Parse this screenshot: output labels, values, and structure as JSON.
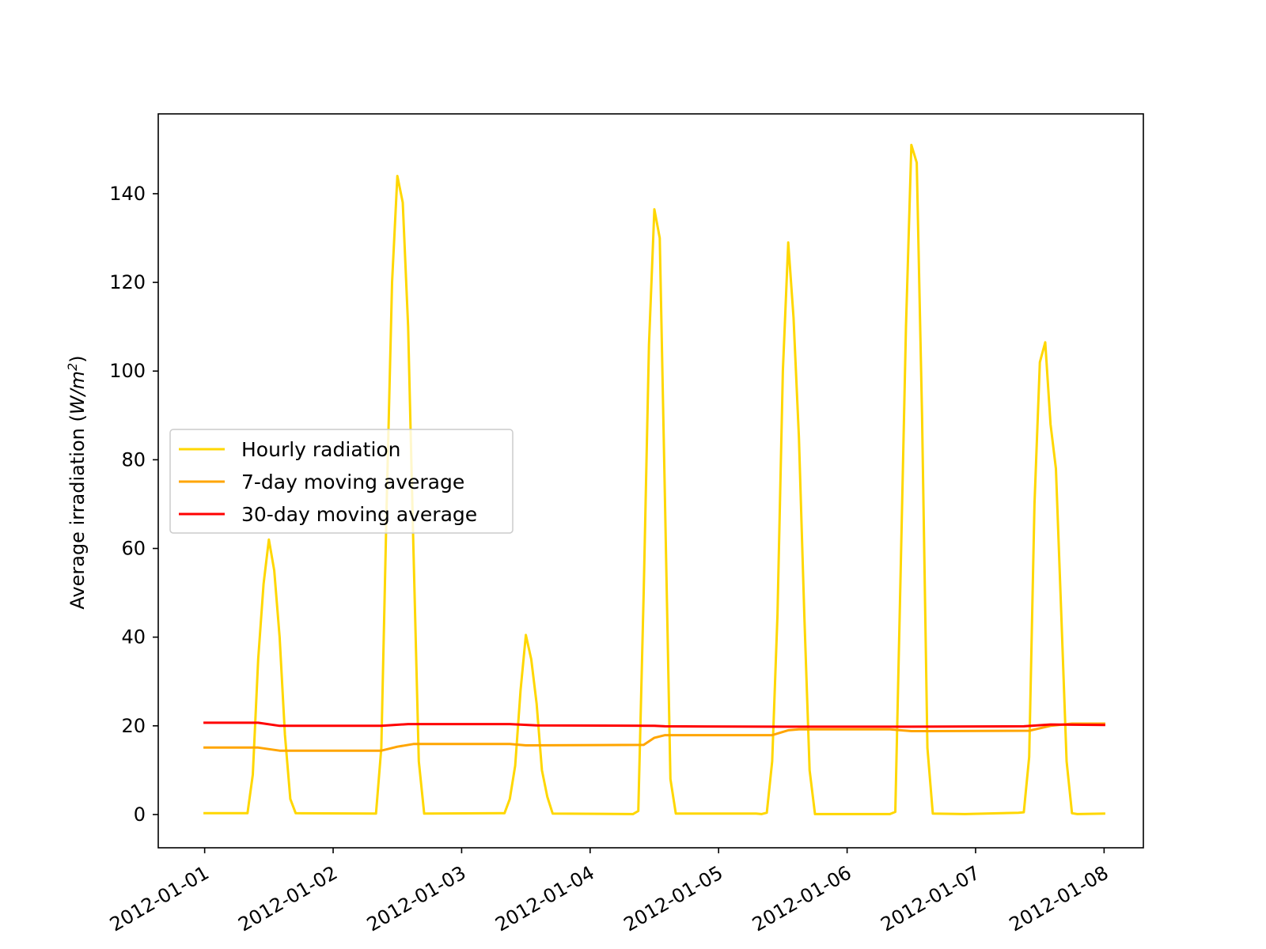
{
  "chart_data": {
    "type": "line",
    "title": "",
    "xlabel": "",
    "ylabel": {
      "prefix": "Average irradiation (",
      "unit_main": "W/m",
      "unit_exp": "2",
      "suffix": ")"
    },
    "ylim": [
      -7.5,
      158
    ],
    "xlim": [
      "2011-12-31T15:20",
      "2012-01-08T07:20"
    ],
    "y_ticks": [
      0,
      20,
      40,
      60,
      80,
      100,
      120,
      140
    ],
    "x_ticks": [
      "2012-01-01",
      "2012-01-02",
      "2012-01-03",
      "2012-01-04",
      "2012-01-05",
      "2012-01-06",
      "2012-01-07",
      "2012-01-08"
    ],
    "grid": false,
    "legend_position": "center-left",
    "series": [
      {
        "name": "Hourly radiation",
        "color": "#FFD700",
        "points": [
          [
            "2012-01-01T00:00",
            0.3
          ],
          [
            "2012-01-01T08:00",
            0.3
          ],
          [
            "2012-01-01T09:00",
            9
          ],
          [
            "2012-01-01T10:00",
            35
          ],
          [
            "2012-01-01T11:00",
            52
          ],
          [
            "2012-01-01T12:00",
            62
          ],
          [
            "2012-01-01T13:00",
            55
          ],
          [
            "2012-01-01T14:00",
            40
          ],
          [
            "2012-01-01T15:00",
            18
          ],
          [
            "2012-01-01T16:00",
            3.5
          ],
          [
            "2012-01-01T17:00",
            0.3
          ],
          [
            "2012-01-02T08:00",
            0.2
          ],
          [
            "2012-01-02T09:00",
            15
          ],
          [
            "2012-01-02T10:00",
            70
          ],
          [
            "2012-01-02T11:00",
            120
          ],
          [
            "2012-01-02T12:00",
            144
          ],
          [
            "2012-01-02T13:00",
            138
          ],
          [
            "2012-01-02T14:00",
            110
          ],
          [
            "2012-01-02T15:00",
            60
          ],
          [
            "2012-01-02T16:00",
            12
          ],
          [
            "2012-01-02T17:00",
            0.2
          ],
          [
            "2012-01-03T08:00",
            0.3
          ],
          [
            "2012-01-03T09:00",
            3.5
          ],
          [
            "2012-01-03T10:00",
            11
          ],
          [
            "2012-01-03T11:00",
            28
          ],
          [
            "2012-01-03T12:00",
            40.5
          ],
          [
            "2012-01-03T13:00",
            35
          ],
          [
            "2012-01-03T14:00",
            25
          ],
          [
            "2012-01-03T15:00",
            10
          ],
          [
            "2012-01-03T16:00",
            4
          ],
          [
            "2012-01-03T17:00",
            0.2
          ],
          [
            "2012-01-04T08:00",
            0.1
          ],
          [
            "2012-01-04T09:00",
            0.8
          ],
          [
            "2012-01-04T10:00",
            50
          ],
          [
            "2012-01-04T11:00",
            106
          ],
          [
            "2012-01-04T12:00",
            136.5
          ],
          [
            "2012-01-04T13:00",
            130
          ],
          [
            "2012-01-04T14:00",
            70
          ],
          [
            "2012-01-04T15:00",
            8
          ],
          [
            "2012-01-04T16:00",
            0.2
          ],
          [
            "2012-01-05T07:00",
            0.2
          ],
          [
            "2012-01-05T08:00",
            0.1
          ],
          [
            "2012-01-05T09:00",
            0.4
          ],
          [
            "2012-01-05T10:00",
            12
          ],
          [
            "2012-01-05T11:00",
            45
          ],
          [
            "2012-01-05T12:00",
            100
          ],
          [
            "2012-01-05T13:00",
            129
          ],
          [
            "2012-01-05T14:00",
            112
          ],
          [
            "2012-01-05T15:00",
            85
          ],
          [
            "2012-01-05T16:00",
            45
          ],
          [
            "2012-01-05T17:00",
            10
          ],
          [
            "2012-01-05T18:00",
            0.1
          ],
          [
            "2012-01-06T08:00",
            0.1
          ],
          [
            "2012-01-06T09:00",
            0.6
          ],
          [
            "2012-01-06T10:00",
            55
          ],
          [
            "2012-01-06T11:00",
            110
          ],
          [
            "2012-01-06T12:00",
            151
          ],
          [
            "2012-01-06T13:00",
            147
          ],
          [
            "2012-01-06T14:00",
            90
          ],
          [
            "2012-01-06T15:00",
            15
          ],
          [
            "2012-01-06T16:00",
            0.2
          ],
          [
            "2012-01-06T22:00",
            0.1
          ],
          [
            "2012-01-07T08:00",
            0.4
          ],
          [
            "2012-01-07T09:00",
            0.5
          ],
          [
            "2012-01-07T10:00",
            13
          ],
          [
            "2012-01-07T11:00",
            70
          ],
          [
            "2012-01-07T12:00",
            102
          ],
          [
            "2012-01-07T13:00",
            106.5
          ],
          [
            "2012-01-07T14:00",
            88
          ],
          [
            "2012-01-07T15:00",
            78
          ],
          [
            "2012-01-07T16:00",
            45
          ],
          [
            "2012-01-07T17:00",
            12
          ],
          [
            "2012-01-07T18:00",
            0.3
          ],
          [
            "2012-01-07T19:00",
            0.1
          ],
          [
            "2012-01-08T00:00",
            0.2
          ]
        ]
      },
      {
        "name": "7-day moving average",
        "color": "#FFA500",
        "points": [
          [
            "2012-01-01T00:00",
            15.1
          ],
          [
            "2012-01-01T10:00",
            15.1
          ],
          [
            "2012-01-01T14:00",
            14.4
          ],
          [
            "2012-01-02T09:00",
            14.4
          ],
          [
            "2012-01-02T12:00",
            15.3
          ],
          [
            "2012-01-02T15:00",
            15.9
          ],
          [
            "2012-01-03T09:00",
            15.9
          ],
          [
            "2012-01-03T12:00",
            15.6
          ],
          [
            "2012-01-04T10:00",
            15.7
          ],
          [
            "2012-01-04T12:00",
            17.3
          ],
          [
            "2012-01-04T14:00",
            17.9
          ],
          [
            "2012-01-05T10:00",
            17.9
          ],
          [
            "2012-01-05T13:00",
            19.0
          ],
          [
            "2012-01-05T15:00",
            19.2
          ],
          [
            "2012-01-06T08:00",
            19.2
          ],
          [
            "2012-01-06T12:00",
            18.8
          ],
          [
            "2012-01-06T15:00",
            18.8
          ],
          [
            "2012-01-07T10:00",
            18.9
          ],
          [
            "2012-01-07T14:00",
            20.0
          ],
          [
            "2012-01-07T18:00",
            20.5
          ],
          [
            "2012-01-08T00:00",
            20.5
          ]
        ]
      },
      {
        "name": "30-day moving average",
        "color": "#FF0000",
        "points": [
          [
            "2012-01-01T00:00",
            20.7
          ],
          [
            "2012-01-01T10:00",
            20.7
          ],
          [
            "2012-01-01T14:00",
            20.0
          ],
          [
            "2012-01-02T09:00",
            20.0
          ],
          [
            "2012-01-02T14:00",
            20.4
          ],
          [
            "2012-01-03T09:00",
            20.4
          ],
          [
            "2012-01-03T14:00",
            20.1
          ],
          [
            "2012-01-04T12:00",
            20.0
          ],
          [
            "2012-01-04T14:00",
            19.9
          ],
          [
            "2012-01-05T12:00",
            19.8
          ],
          [
            "2012-01-06T12:00",
            19.8
          ],
          [
            "2012-01-07T09:00",
            19.9
          ],
          [
            "2012-01-07T14:00",
            20.3
          ],
          [
            "2012-01-08T00:00",
            20.2
          ]
        ]
      }
    ]
  }
}
